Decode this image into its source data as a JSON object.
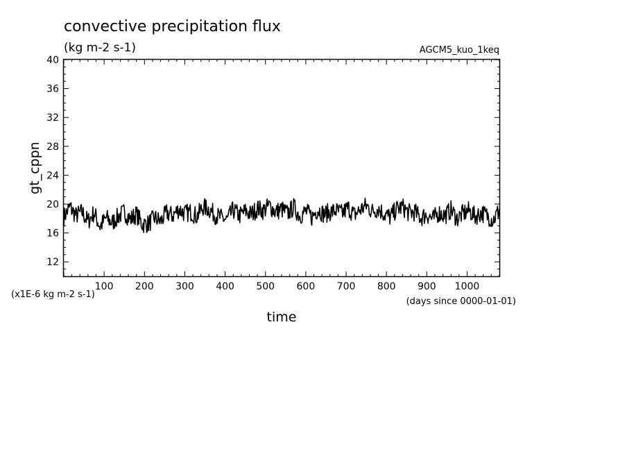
{
  "chart_data": {
    "type": "line",
    "title": "convective precipitation flux",
    "units": "(kg m-2 s-1)",
    "experiment": "AGCM5_kuo_1keq",
    "ylabel": "gt_cppn",
    "xlabel": "time",
    "y_scale_note": "(x1E-6 kg m-2 s-1)",
    "x_units_note": "(days since 0000-01-01)",
    "xlim": [
      0,
      1080
    ],
    "ylim": [
      10,
      40
    ],
    "x_ticks": [
      100,
      200,
      300,
      400,
      500,
      600,
      700,
      800,
      900,
      1000
    ],
    "y_ticks": [
      12,
      16,
      20,
      24,
      28,
      32,
      36,
      40
    ],
    "grid": false,
    "series": [
      {
        "x": [
          0,
          15,
          30,
          45,
          60,
          75,
          90,
          105,
          120,
          135,
          150,
          165,
          180,
          195,
          210,
          225,
          240,
          255,
          270,
          285,
          300,
          315,
          330,
          345,
          360,
          375,
          390,
          405,
          420,
          435,
          450,
          465,
          480,
          495,
          510,
          525,
          540,
          555,
          570,
          585,
          600,
          615,
          630,
          645,
          660,
          675,
          690,
          705,
          720,
          735,
          750,
          765,
          780,
          795,
          810,
          825,
          840,
          855,
          870,
          885,
          900,
          915,
          930,
          945,
          960,
          975,
          990,
          1005,
          1020,
          1035,
          1050,
          1065,
          1080
        ],
        "y": [
          18.2,
          19.6,
          18.4,
          18.9,
          17.6,
          18.8,
          16.9,
          18.1,
          17.4,
          18.3,
          18.9,
          17.9,
          18.6,
          17.2,
          17.3,
          18.1,
          17.6,
          18.8,
          18.4,
          19.3,
          18.7,
          18.9,
          18.3,
          19.6,
          19.3,
          18.5,
          18.1,
          17.8,
          19.2,
          18.4,
          19.0,
          18.6,
          19.4,
          19.1,
          19.8,
          18.9,
          19.3,
          18.7,
          19.6,
          18.4,
          19.0,
          18.2,
          19.3,
          18.6,
          18.9,
          19.1,
          18.7,
          19.5,
          18.5,
          19.2,
          19.8,
          19.0,
          19.4,
          18.6,
          18.2,
          19.3,
          19.6,
          18.8,
          18.9,
          18.1,
          18.6,
          17.9,
          18.8,
          18.4,
          19.2,
          18.0,
          18.7,
          19.1,
          18.3,
          18.8,
          18.4,
          17.8,
          19.2
        ]
      }
    ]
  }
}
